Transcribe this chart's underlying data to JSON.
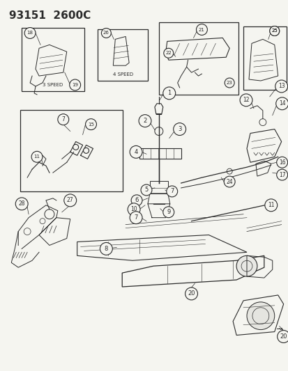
{
  "title": "93151  2600C",
  "bg_color": "#f5f5f0",
  "diagram_color": "#2a2a2a",
  "title_fontsize": 11,
  "fig_width": 4.14,
  "fig_height": 5.33,
  "dpi": 100,
  "lw": 0.7
}
